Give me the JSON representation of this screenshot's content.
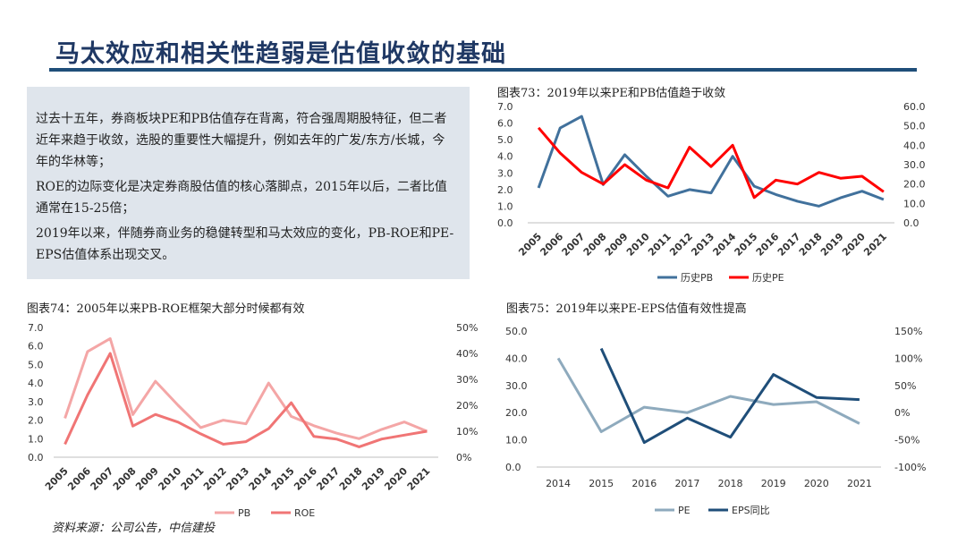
{
  "page": {
    "title": "马太效应和相关性趋弱是估值收敛的基础",
    "source": "资料来源：公司公告，中信建投"
  },
  "textbox": {
    "p1": "过去十五年，券商板块PE和PB估值存在背离，符合强周期股特征，但二者近年来趋于收敛，选股的重要性大幅提升，例如去年的广发/东方/长城，今年的华林等；",
    "p2": "ROE的边际变化是决定券商股估值的核心落脚点，2015年以后，二者比值通常在15-25倍；",
    "p3": "2019年以来，伴随券商业务的稳健转型和马太效应的变化，PB-ROE和PE-EPS估值体系出现交叉。"
  },
  "chart_data": [
    {
      "type": "line",
      "title": "图表73：2019年以来PE和PB估值趋于收敛",
      "categories": [
        "2005",
        "2006",
        "2007",
        "2008",
        "2009",
        "2010",
        "2011",
        "2012",
        "2013",
        "2014",
        "2015",
        "2016",
        "2017",
        "2018",
        "2019",
        "2020",
        "2021"
      ],
      "left_axis": {
        "ylim": [
          0,
          7
        ],
        "ticks": [
          "0.0",
          "1.0",
          "2.0",
          "3.0",
          "4.0",
          "5.0",
          "6.0",
          "7.0"
        ]
      },
      "right_axis": {
        "ylim": [
          0,
          60
        ],
        "ticks": [
          "0.0",
          "10.0",
          "20.0",
          "30.0",
          "40.0",
          "50.0",
          "60.0"
        ]
      },
      "series": [
        {
          "name": "历史PB",
          "axis": "left",
          "color": "#41719c",
          "values": [
            2.1,
            5.7,
            6.4,
            2.3,
            4.1,
            2.8,
            1.6,
            2.0,
            1.8,
            4.0,
            2.2,
            1.7,
            1.3,
            1.0,
            1.5,
            1.9,
            1.4
          ]
        },
        {
          "name": "历史PE",
          "axis": "right",
          "color": "#ff0000",
          "values": [
            49,
            36,
            26,
            20,
            30,
            22,
            18,
            39,
            29,
            40,
            13,
            22,
            20,
            26,
            23,
            24,
            16
          ]
        }
      ]
    },
    {
      "type": "line",
      "title": "图表74：2005年以来PB-ROE框架大部分时候都有效",
      "categories": [
        "2005",
        "2006",
        "2007",
        "2008",
        "2009",
        "2010",
        "2011",
        "2012",
        "2013",
        "2014",
        "2015",
        "2016",
        "2017",
        "2018",
        "2019",
        "2020",
        "2021"
      ],
      "left_axis": {
        "ylim": [
          0,
          7
        ],
        "ticks": [
          "0.0",
          "1.0",
          "2.0",
          "3.0",
          "4.0",
          "5.0",
          "6.0",
          "7.0"
        ]
      },
      "right_axis": {
        "ylim": [
          0,
          50
        ],
        "ticks": [
          "0%",
          "10%",
          "20%",
          "30%",
          "40%",
          "50%"
        ]
      },
      "series": [
        {
          "name": "PB",
          "axis": "left",
          "color": "#f4a6a6",
          "values": [
            2.1,
            5.7,
            6.4,
            2.3,
            4.1,
            2.8,
            1.6,
            2.0,
            1.8,
            4.0,
            2.2,
            1.7,
            1.3,
            1.0,
            1.5,
            1.9,
            1.4
          ]
        },
        {
          "name": "ROE",
          "axis": "right",
          "color": "#f07575",
          "values": [
            5,
            24,
            40,
            12,
            16.5,
            13.5,
            9,
            5,
            6,
            11,
            21,
            8,
            7,
            4,
            7,
            8.5,
            10
          ]
        }
      ]
    },
    {
      "type": "line",
      "title": "图表75：2019年以来PE-EPS估值有效性提高",
      "categories": [
        "2014",
        "2015",
        "2016",
        "2017",
        "2018",
        "2019",
        "2020",
        "2021"
      ],
      "left_axis": {
        "ylim": [
          0,
          50
        ],
        "ticks": [
          "0.0",
          "10.0",
          "20.0",
          "30.0",
          "40.0",
          "50.0"
        ]
      },
      "right_axis": {
        "ylim": [
          -100,
          150
        ],
        "ticks": [
          "-100%",
          "-50%",
          "0%",
          "50%",
          "100%",
          "150%"
        ]
      },
      "series": [
        {
          "name": "PE",
          "axis": "left",
          "color": "#8eaabd",
          "values": [
            40,
            13,
            22,
            20,
            26,
            23,
            24,
            16
          ]
        },
        {
          "name": "EPS同比",
          "axis": "right",
          "color": "#1f4e79",
          "values": [
            null,
            118,
            -55,
            -10,
            -45,
            70,
            28,
            24
          ]
        }
      ]
    }
  ]
}
